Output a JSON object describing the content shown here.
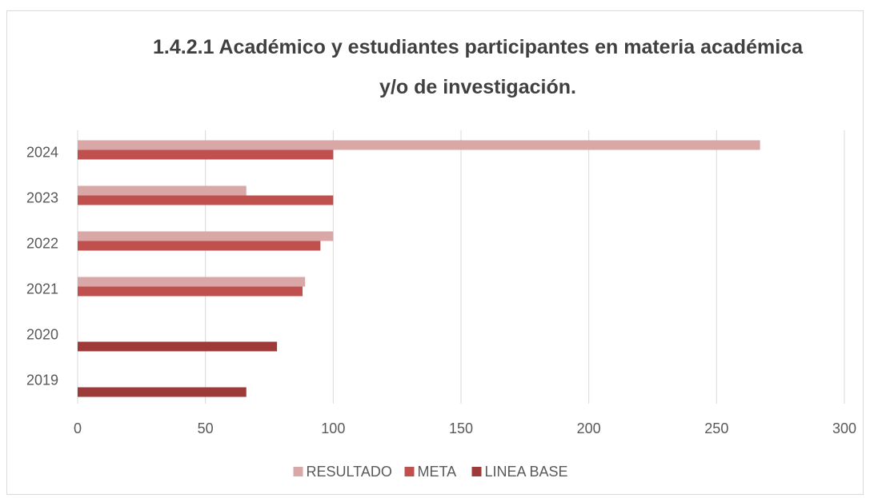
{
  "chart_data": {
    "type": "barh",
    "title": "1.4.2.1 Académico y estudiantes participantes en materia académica y/o de investigación.",
    "categories": [
      "2019",
      "2020",
      "2021",
      "2022",
      "2023",
      "2024"
    ],
    "series": [
      {
        "name": "RESULTADO",
        "color": "#d9a7a6",
        "values": [
          null,
          null,
          89,
          100,
          66,
          267
        ]
      },
      {
        "name": "META",
        "color": "#c0504d",
        "values": [
          null,
          null,
          88,
          95,
          100,
          100
        ]
      },
      {
        "name": "LINEA BASE",
        "color": "#9e3b39",
        "values": [
          66,
          78,
          null,
          null,
          null,
          null
        ]
      }
    ],
    "xlim": [
      0,
      300
    ],
    "xticks": [
      0,
      50,
      100,
      150,
      200,
      250,
      300
    ],
    "grid": true,
    "legend": "bottom"
  }
}
